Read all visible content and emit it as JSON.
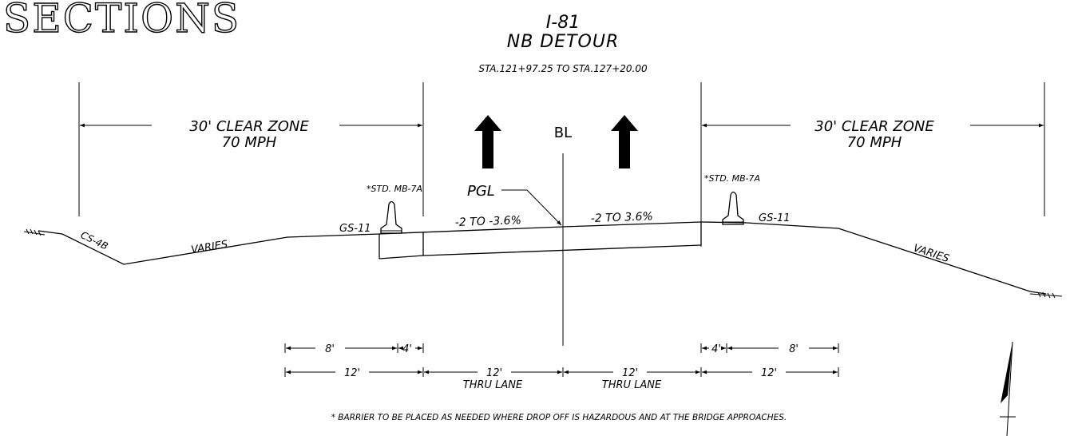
{
  "heading": "SECTIONS",
  "title": {
    "route": "I-81",
    "name": "NB DETOUR",
    "stations": "STA.121+97.25 TO STA.127+20.00"
  },
  "baseline_symbol": "BL",
  "clear_zone": {
    "left": {
      "line1": "30' CLEAR ZONE",
      "line2": "70 MPH"
    },
    "right": {
      "line1": "30' CLEAR ZONE",
      "line2": "70 MPH"
    }
  },
  "labels": {
    "barrier_left": "*STD. MB-7A",
    "barrier_right": "*STD. MB-7A",
    "pgl": "PGL",
    "guardrail_left": "GS-11",
    "guardrail_right": "GS-11",
    "slope_left": "-2 TO -3.6%",
    "slope_right": "-2 TO 3.6%",
    "ditch": "CS-4B",
    "varies_left": "VARIES",
    "varies_right": "VARIES"
  },
  "dimensions": {
    "upper_left": [
      "8'",
      "4'"
    ],
    "upper_right": [
      "4'",
      "8'"
    ],
    "lower": [
      {
        "value": "12'",
        "sub": ""
      },
      {
        "value": "12'",
        "sub": "THRU LANE"
      },
      {
        "value": "12'",
        "sub": "THRU LANE"
      },
      {
        "value": "12'",
        "sub": ""
      }
    ]
  },
  "footnote": "* BARRIER TO BE PLACED AS NEEDED WHERE DROP OFF IS HAZARDOUS AND AT THE BRIDGE APPROACHES."
}
